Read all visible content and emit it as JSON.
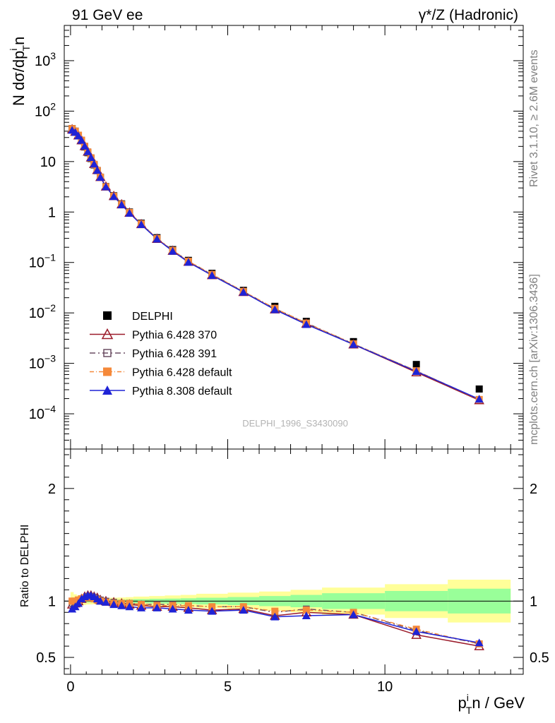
{
  "header": {
    "left": "91 GeV ee",
    "right": "γ*/Z (Hadronic)"
  },
  "side": {
    "rivet": "Rivet 3.1.10, ≥ 2.6M events",
    "mcplots": "mcplots.cern.ch [arXiv:1306.3436]"
  },
  "analysis_label": "DELPHI_1996_S3430090",
  "colors": {
    "data": "#000000",
    "p370": "#9b1b2a",
    "p391": "#6b4e63",
    "pdef": "#f5893a",
    "p8": "#1f23d6",
    "band_inner": "#99ff99",
    "band_outer": "#ffff99"
  },
  "chart_data": {
    "type": "scatter",
    "title": "",
    "xlabel": "p_T^in / GeV",
    "ylabel_main": "N dσ/dp_T^in",
    "ylabel_ratio": "Ratio to DELPHI",
    "xlim": [
      -0.2,
      14.4
    ],
    "ylim_main": [
      2e-05,
      5000
    ],
    "ylim_ratio": [
      0.35,
      2.35
    ],
    "yscale_main": "log",
    "legend_position": "lower-left",
    "main_ytick_labels": [
      "10^-4",
      "10^-3",
      "10^-2",
      "10^-1",
      "1",
      "10",
      "10^2",
      "10^3"
    ],
    "ratio_ytick_labels": [
      "0.5",
      "1",
      "2"
    ],
    "xtick_labels": [
      "0",
      "5",
      "10"
    ],
    "legend": [
      "DELPHI",
      "Pythia 6.428 370",
      "Pythia 6.428 391",
      "Pythia 6.428 default",
      "Pythia 8.308 default"
    ],
    "x": [
      0.05,
      0.15,
      0.25,
      0.35,
      0.45,
      0.55,
      0.65,
      0.75,
      0.85,
      0.95,
      1.125,
      1.375,
      1.625,
      1.875,
      2.25,
      2.75,
      3.25,
      3.75,
      4.5,
      5.5,
      6.5,
      7.5,
      9.0,
      11.0,
      13.0
    ],
    "data": {
      "name": "DELPHI",
      "values": [
        45,
        40,
        33,
        26,
        19.5,
        15,
        11.5,
        8.6,
        6.6,
        4.9,
        3.2,
        2.1,
        1.45,
        1.0,
        0.6,
        0.31,
        0.18,
        0.11,
        0.061,
        0.028,
        0.0135,
        0.0068,
        0.0027,
        0.00095,
        0.00031
      ],
      "band_edges": [
        0,
        0.1,
        0.2,
        0.3,
        0.4,
        0.5,
        0.6,
        0.7,
        0.8,
        0.9,
        1.0,
        1.25,
        1.5,
        1.75,
        2.0,
        2.5,
        3.0,
        3.5,
        4.0,
        5.0,
        6.0,
        7.0,
        8.0,
        10.0,
        12.0,
        14.0
      ],
      "band_stat": [
        0.015,
        0.013,
        0.012,
        0.012,
        0.012,
        0.012,
        0.012,
        0.012,
        0.012,
        0.012,
        0.012,
        0.013,
        0.014,
        0.015,
        0.017,
        0.02,
        0.022,
        0.025,
        0.03,
        0.036,
        0.045,
        0.055,
        0.07,
        0.09,
        0.11
      ],
      "band_total": [
        0.08,
        0.06,
        0.05,
        0.04,
        0.035,
        0.03,
        0.03,
        0.028,
        0.028,
        0.028,
        0.028,
        0.03,
        0.032,
        0.035,
        0.04,
        0.045,
        0.05,
        0.055,
        0.065,
        0.075,
        0.085,
        0.1,
        0.12,
        0.15,
        0.19
      ]
    },
    "series": [
      {
        "name": "Pythia 6.428 370",
        "marker": "triangle-open",
        "dash": "",
        "ratio": [
          0.97,
          0.98,
          1.0,
          1.02,
          1.04,
          1.05,
          1.05,
          1.04,
          1.03,
          1.01,
          1.0,
          0.99,
          0.98,
          0.97,
          0.96,
          0.95,
          0.95,
          0.94,
          0.92,
          0.93,
          0.87,
          0.9,
          0.88,
          0.7,
          0.6
        ]
      },
      {
        "name": "Pythia 6.428 391",
        "marker": "square-open",
        "dash": "8,4,2,4",
        "ratio": [
          0.98,
          0.99,
          1.01,
          1.02,
          1.03,
          1.04,
          1.04,
          1.03,
          1.02,
          1.01,
          1.0,
          0.99,
          0.98,
          0.98,
          0.97,
          0.97,
          0.97,
          0.96,
          0.95,
          0.95,
          0.9,
          0.93,
          0.9,
          0.74,
          0.62
        ]
      },
      {
        "name": "Pythia 6.428 default",
        "marker": "square-filled",
        "dash": "6,3,1,3",
        "ratio": [
          1.0,
          1.0,
          1.01,
          1.02,
          1.03,
          1.03,
          1.03,
          1.02,
          1.01,
          1.0,
          0.99,
          0.98,
          0.98,
          0.98,
          0.97,
          0.96,
          0.96,
          0.96,
          0.95,
          0.95,
          0.91,
          0.92,
          0.9,
          0.75,
          0.62
        ]
      },
      {
        "name": "Pythia 8.308 default",
        "marker": "triangle-filled",
        "dash": "",
        "ratio": [
          0.93,
          0.95,
          0.98,
          1.02,
          1.04,
          1.05,
          1.05,
          1.04,
          1.02,
          1.0,
          0.99,
          0.97,
          0.96,
          0.95,
          0.94,
          0.94,
          0.93,
          0.92,
          0.91,
          0.92,
          0.86,
          0.87,
          0.88,
          0.73,
          0.63
        ]
      }
    ]
  }
}
